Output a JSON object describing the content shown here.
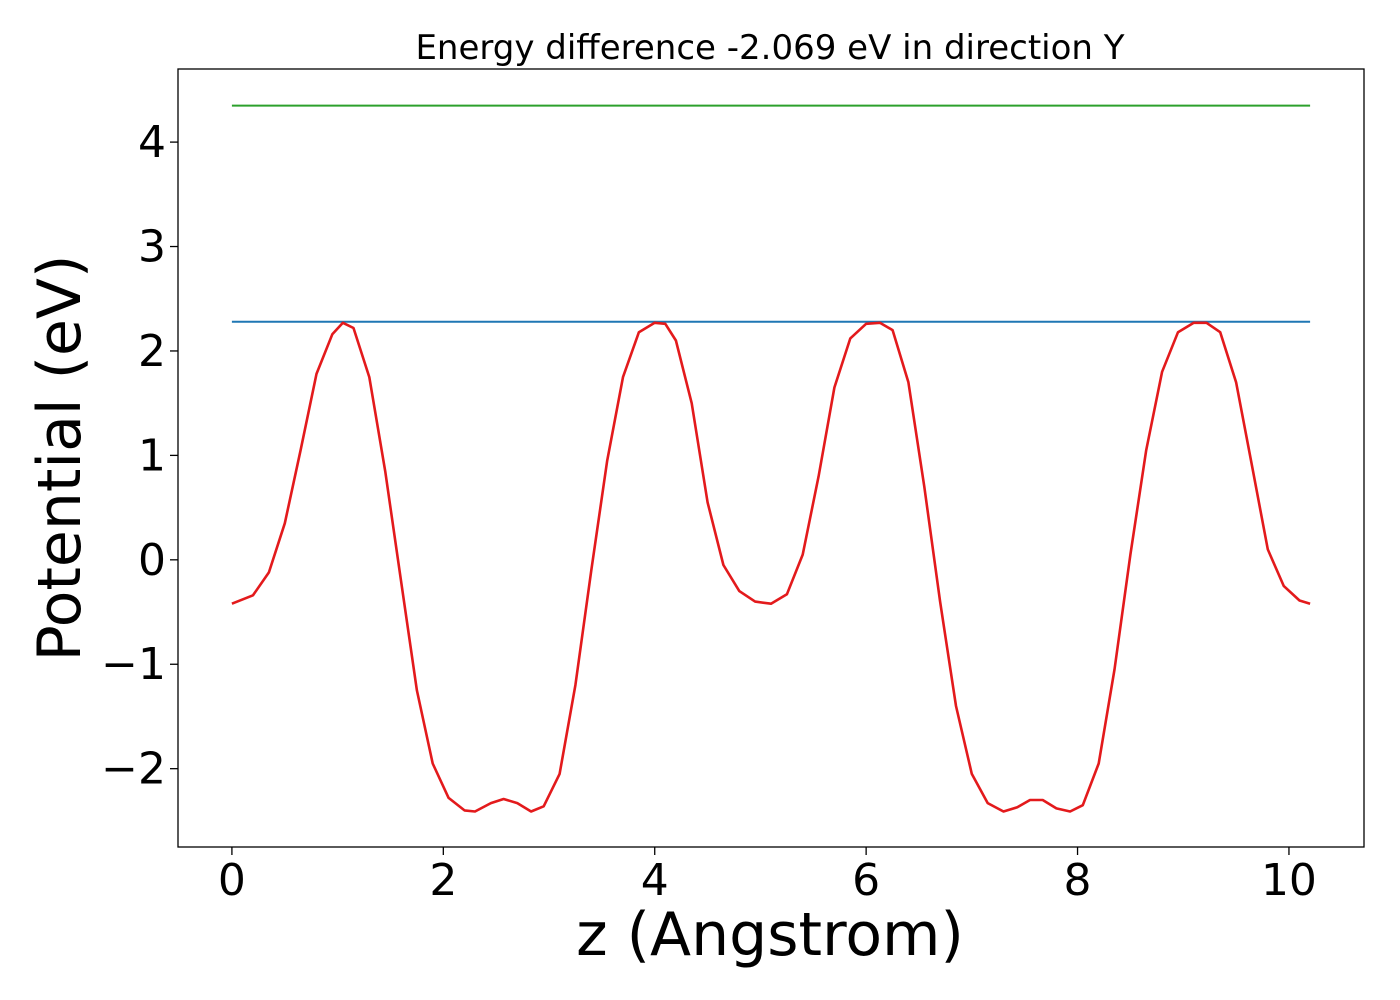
{
  "chart_data": {
    "type": "line",
    "title": "Energy difference -2.069 eV in direction Y",
    "xlabel": "z (Angstrom)",
    "ylabel": "Potential (eV)",
    "xlim": [
      -0.51,
      10.71
    ],
    "ylim": [
      -2.75,
      4.7
    ],
    "xticks": [
      0,
      2,
      4,
      6,
      8,
      10
    ],
    "xtick_labels": [
      "0",
      "2",
      "4",
      "6",
      "8",
      "10"
    ],
    "yticks": [
      -2,
      -1,
      0,
      1,
      2,
      3,
      4
    ],
    "ytick_labels": [
      "−2",
      "−1",
      "0",
      "1",
      "2",
      "3",
      "4"
    ],
    "grid": false,
    "legend": "none",
    "series": [
      {
        "color": "#2ca02c",
        "x": [
          0,
          10.2
        ],
        "y": [
          4.35,
          4.35
        ]
      },
      {
        "color": "#1f77b4",
        "x": [
          0,
          10.2
        ],
        "y": [
          2.28,
          2.28
        ]
      },
      {
        "color": "#e31a1c",
        "x": [
          0.0,
          0.2,
          0.35,
          0.5,
          0.65,
          0.8,
          0.95,
          1.05,
          1.15,
          1.3,
          1.45,
          1.6,
          1.75,
          1.9,
          2.05,
          2.2,
          2.3,
          2.45,
          2.57,
          2.7,
          2.83,
          2.95,
          3.1,
          3.25,
          3.4,
          3.55,
          3.7,
          3.85,
          4.0,
          4.1,
          4.2,
          4.35,
          4.5,
          4.65,
          4.8,
          4.95,
          5.1,
          5.25,
          5.4,
          5.55,
          5.7,
          5.85,
          6.0,
          6.13,
          6.25,
          6.4,
          6.55,
          6.7,
          6.85,
          7.0,
          7.15,
          7.3,
          7.43,
          7.55,
          7.67,
          7.8,
          7.93,
          8.05,
          8.2,
          8.35,
          8.5,
          8.65,
          8.8,
          8.95,
          9.1,
          9.22,
          9.35,
          9.5,
          9.65,
          9.8,
          9.95,
          10.1,
          10.2
        ],
        "y": [
          -0.42,
          -0.34,
          -0.12,
          0.35,
          1.05,
          1.78,
          2.16,
          2.27,
          2.22,
          1.75,
          0.85,
          -0.2,
          -1.25,
          -1.95,
          -2.28,
          -2.4,
          -2.41,
          -2.33,
          -2.29,
          -2.33,
          -2.41,
          -2.36,
          -2.05,
          -1.2,
          -0.1,
          0.95,
          1.75,
          2.18,
          2.27,
          2.26,
          2.1,
          1.5,
          0.55,
          -0.05,
          -0.3,
          -0.4,
          -0.42,
          -0.33,
          0.05,
          0.8,
          1.65,
          2.12,
          2.26,
          2.27,
          2.2,
          1.7,
          0.7,
          -0.4,
          -1.4,
          -2.05,
          -2.33,
          -2.41,
          -2.37,
          -2.3,
          -2.3,
          -2.38,
          -2.41,
          -2.35,
          -1.95,
          -1.05,
          0.05,
          1.05,
          1.8,
          2.18,
          2.27,
          2.27,
          2.18,
          1.7,
          0.9,
          0.1,
          -0.25,
          -0.39,
          -0.42
        ]
      }
    ]
  }
}
